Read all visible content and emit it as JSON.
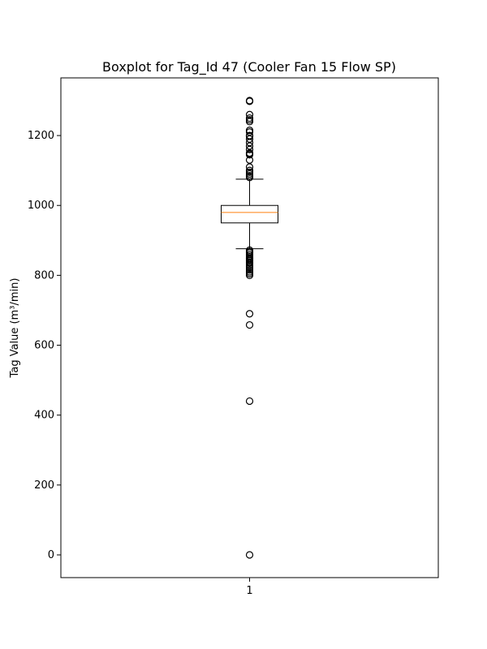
{
  "chart_data": {
    "type": "boxplot",
    "title": "Boxplot for Tag_Id 47 (Cooler Fan 15 Flow SP)",
    "xlabel": "",
    "ylabel": "Tag Value (m³/min)",
    "categories": [
      "1"
    ],
    "ylim": [
      -65,
      1365
    ],
    "yticks": [
      "0",
      "200",
      "400",
      "600",
      "800",
      "1000",
      "1200"
    ],
    "grid": false,
    "legend": "none",
    "box": {
      "q1": 950,
      "median": 980,
      "q3": 1000,
      "whisker_low": 876,
      "whisker_high": 1075
    },
    "outliers": [
      1300,
      1298,
      1260,
      1250,
      1245,
      1240,
      1215,
      1210,
      1200,
      1198,
      1190,
      1180,
      1170,
      1160,
      1150,
      1148,
      1145,
      1130,
      1110,
      1100,
      1095,
      1090,
      1085,
      1080,
      872,
      868,
      865,
      860,
      855,
      850,
      848,
      845,
      842,
      838,
      835,
      830,
      825,
      820,
      815,
      810,
      805,
      800,
      690,
      658,
      440,
      0
    ],
    "colors": {
      "median": "#ff7f0e",
      "box": "#000000",
      "outlier": "#000000"
    }
  }
}
